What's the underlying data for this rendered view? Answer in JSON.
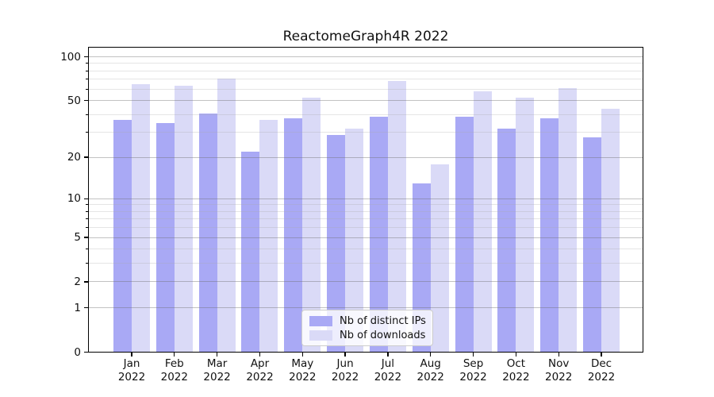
{
  "chart_data": {
    "type": "bar",
    "title": "ReactomeGraph4R 2022",
    "categories": [
      "Jan",
      "Feb",
      "Mar",
      "Apr",
      "May",
      "Jun",
      "Jul",
      "Aug",
      "Sep",
      "Oct",
      "Nov",
      "Dec"
    ],
    "category_year": "2022",
    "series": [
      {
        "name": "Nb of distinct IPs",
        "color": "#a9a9f5",
        "values": [
          37,
          35,
          41,
          22,
          38,
          29,
          39,
          13,
          39,
          32,
          38,
          28
        ]
      },
      {
        "name": "Nb of downloads",
        "color": "#dadaf7",
        "values": [
          65,
          64,
          71,
          37,
          53,
          32,
          69,
          18,
          58,
          53,
          61,
          44
        ]
      }
    ],
    "xlabel": "",
    "ylabel": "",
    "y_scale": "log1p",
    "ylim": [
      0,
      116
    ],
    "y_axis": {
      "major_ticks": [
        100,
        50,
        20,
        10,
        5,
        2,
        1,
        0
      ],
      "minor_ticks": [
        3,
        4,
        6,
        7,
        8,
        9,
        30,
        40,
        60,
        70,
        80,
        90
      ]
    },
    "grid": true,
    "legend_position": "lower center"
  }
}
